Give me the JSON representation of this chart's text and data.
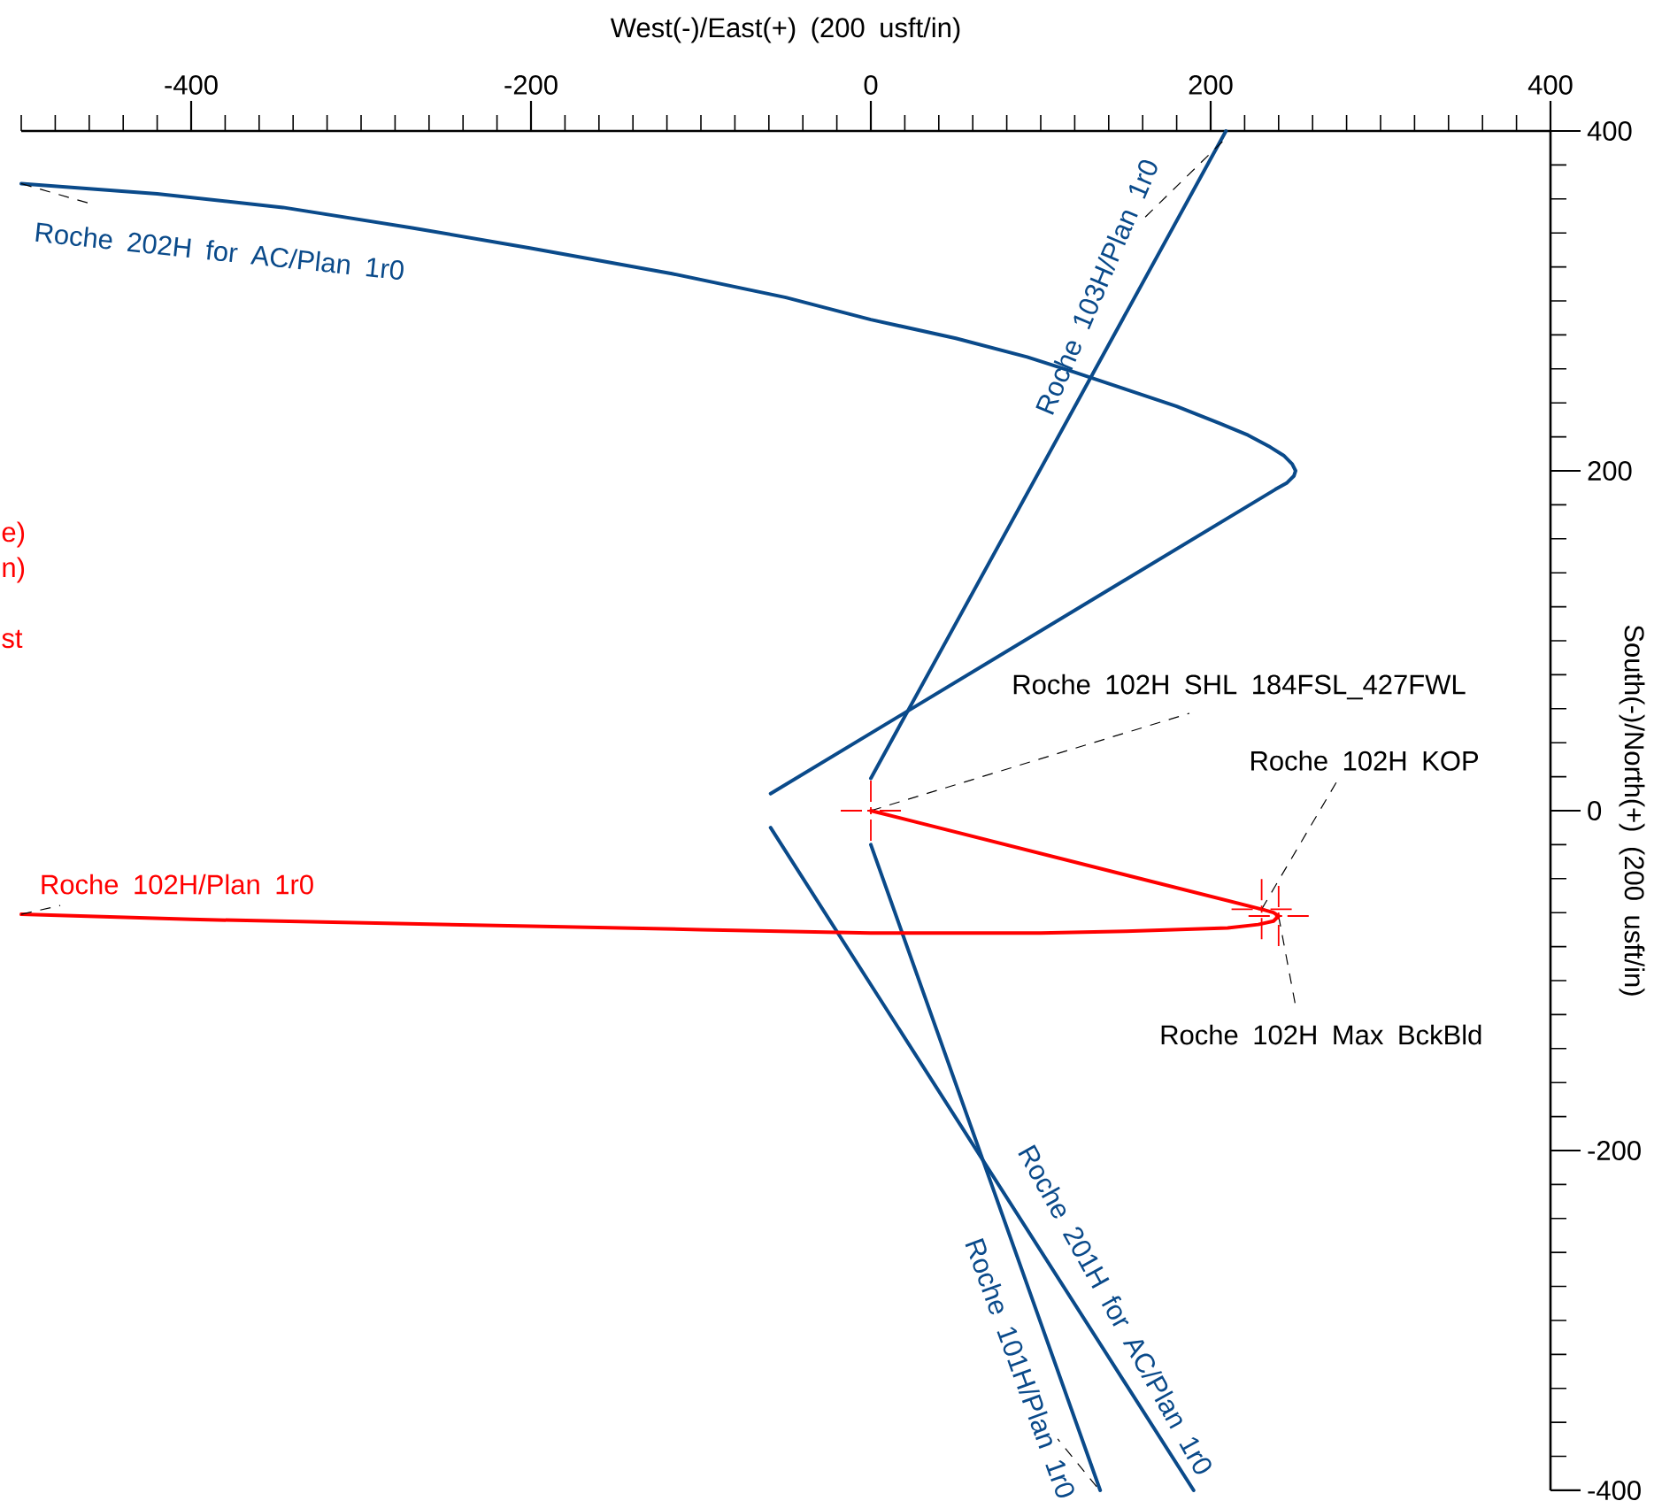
{
  "chart_data": {
    "type": "line",
    "xlabel": "West(-)/East(+) (200 usft/in)",
    "ylabel": "South(-)/North(+) (200 usft/in)",
    "xlim": [
      -500,
      400
    ],
    "ylim": [
      -400,
      400
    ],
    "xticks": [
      -400,
      -200,
      0,
      200,
      400
    ],
    "yticks": [
      -400,
      -200,
      0,
      200,
      400
    ],
    "series": [
      {
        "name": "Roche 202H for AC/Plan 1r0",
        "color": "#0a4a8a",
        "x": [
          -59,
          238,
          245,
          249,
          250,
          248,
          243,
          235,
          222,
          205,
          180,
          150,
          120,
          92,
          50,
          0,
          -50,
          -117,
          -200,
          -270,
          -346,
          -420,
          -500
        ],
        "values": [
          10,
          189,
          193,
          197,
          200,
          204,
          209,
          214,
          221,
          228,
          238,
          248,
          258,
          267,
          278,
          289,
          302,
          316,
          331,
          343,
          355,
          363,
          369
        ]
      },
      {
        "name": "Roche 103H/Plan 1r0",
        "color": "#0a4a8a",
        "x": [
          0,
          209
        ],
        "values": [
          19,
          400
        ]
      },
      {
        "name": "Roche 201H for AC/Plan 1r0",
        "color": "#0a4a8a",
        "x": [
          -59,
          190
        ],
        "values": [
          -10,
          -400
        ]
      },
      {
        "name": "Roche 101H/Plan 1r0",
        "color": "#0a4a8a",
        "x": [
          0,
          135
        ],
        "values": [
          -20,
          -400
        ]
      },
      {
        "name": "Roche 102H/Plan 1r0",
        "color": "#ff0000",
        "x": [
          0,
          230,
          237,
          240,
          237,
          228,
          210,
          150,
          100,
          0,
          -100,
          -200,
          -300,
          -400,
          -500
        ],
        "values": [
          0,
          -58,
          -60,
          -62,
          -65,
          -67,
          -69,
          -71,
          -72,
          -72,
          -70,
          -68,
          -66,
          -64,
          -61
        ]
      }
    ],
    "annotations": [
      {
        "text": "Roche 102H SHL 184FSL_427FWL",
        "x": 0,
        "y": 0
      },
      {
        "text": "Roche 102H KOP",
        "x": 230,
        "y": -58
      },
      {
        "text": "Roche 102H Max BckBld",
        "x": 240,
        "y": -62
      },
      "e)",
      "n)",
      "st"
    ]
  }
}
